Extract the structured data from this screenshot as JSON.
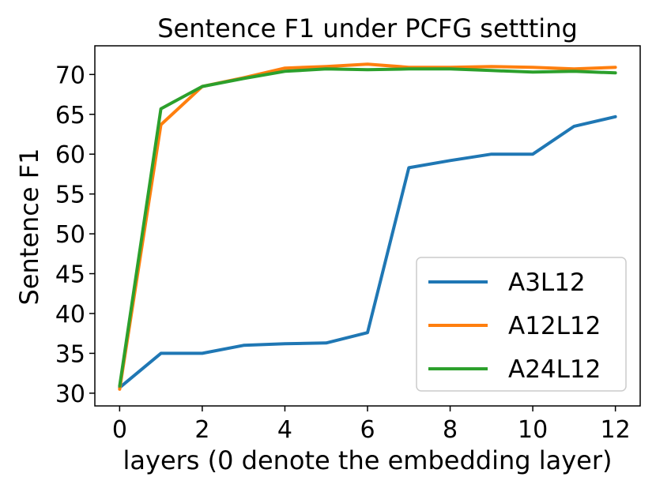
{
  "chart_data": {
    "type": "line",
    "title": "Sentence F1 under PCFG settting",
    "xlabel": "layers (0 denote the embedding layer)",
    "ylabel": "Sentence F1",
    "xlim": [
      -0.6,
      12.6
    ],
    "ylim": [
      28.4,
      73.6
    ],
    "xticks": [
      0,
      2,
      4,
      6,
      8,
      10,
      12
    ],
    "yticks": [
      30,
      35,
      40,
      45,
      50,
      55,
      60,
      65,
      70
    ],
    "grid": false,
    "legend_position": "lower-right",
    "x": [
      0,
      1,
      2,
      3,
      4,
      5,
      6,
      7,
      8,
      9,
      10,
      11,
      12
    ],
    "series": [
      {
        "name": "A3L12",
        "color": "#1f77b4",
        "values": [
          30.7,
          35.0,
          35.0,
          36.0,
          36.2,
          36.3,
          37.6,
          58.3,
          59.2,
          60.0,
          60.0,
          63.5,
          64.7
        ]
      },
      {
        "name": "A12L12",
        "color": "#ff7f0e",
        "values": [
          30.5,
          63.7,
          68.5,
          69.6,
          70.8,
          71.0,
          71.3,
          70.9,
          70.9,
          71.0,
          70.9,
          70.7,
          70.9
        ]
      },
      {
        "name": "A24L12",
        "color": "#2ca02c",
        "values": [
          30.9,
          65.7,
          68.5,
          69.5,
          70.4,
          70.7,
          70.6,
          70.7,
          70.7,
          70.5,
          70.3,
          70.4,
          70.2
        ]
      }
    ]
  }
}
